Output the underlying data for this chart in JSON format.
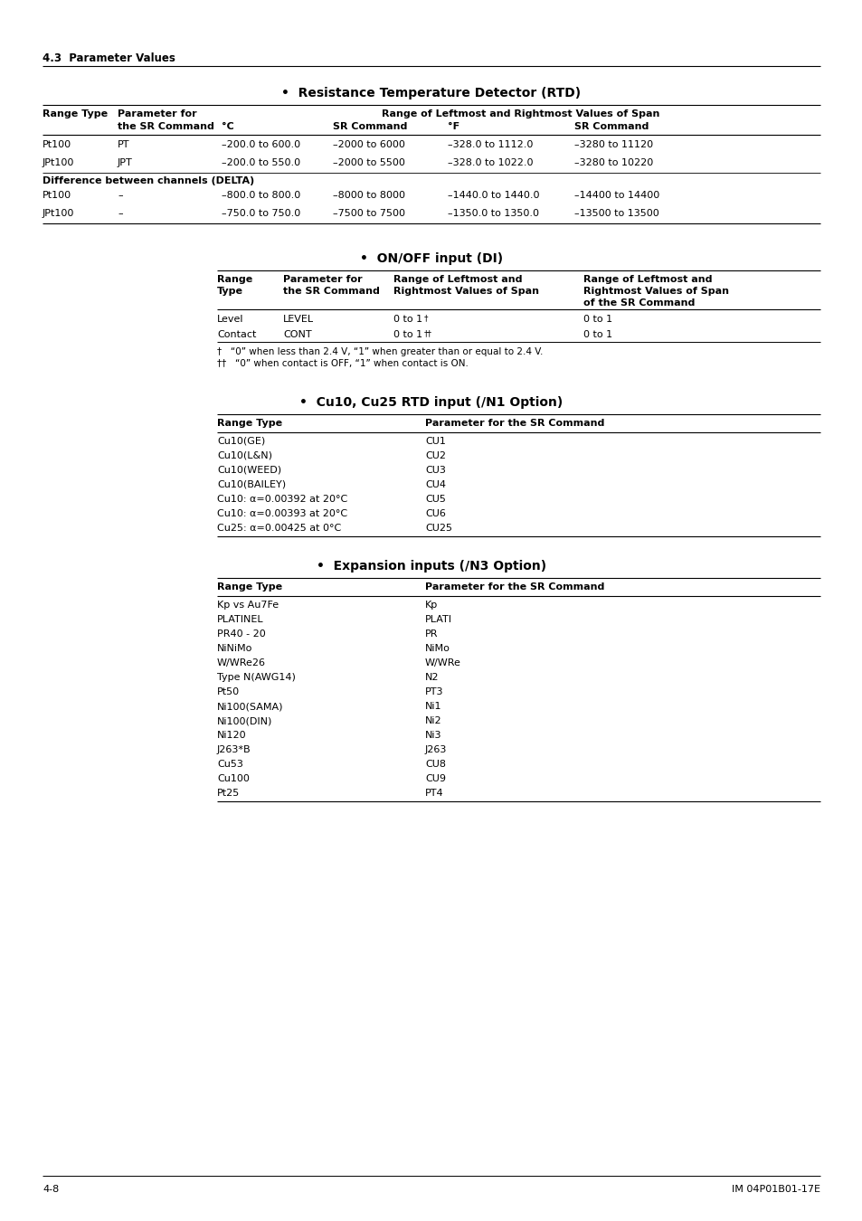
{
  "page_header": "4.3  Parameter Values",
  "footer_left": "4-8",
  "footer_right": "IM 04P01B01-17E",
  "section1_title": "•  Resistance Temperature Detector (RTD)",
  "rtd_table": {
    "rows": [
      [
        "Pt100",
        "PT",
        "–200.0 to 600.0",
        "–2000 to 6000",
        "–328.0 to 1112.0",
        "–3280 to 11120"
      ],
      [
        "JPt100",
        "JPT",
        "–200.0 to 550.0",
        "–2000 to 5500",
        "–328.0 to 1022.0",
        "–3280 to 10220"
      ]
    ],
    "delta_header": "Difference between channels (DELTA)",
    "delta_rows": [
      [
        "Pt100",
        "–",
        "–800.0 to 800.0",
        "–8000 to 8000",
        "–1440.0 to 1440.0",
        "–14400 to 14400"
      ],
      [
        "JPt100",
        "–",
        "–750.0 to 750.0",
        "–7500 to 7500",
        "–1350.0 to 1350.0",
        "–13500 to 13500"
      ]
    ]
  },
  "section2_title": "•  ON/OFF input (DI)",
  "di_table": {
    "rows": [
      [
        "Level",
        "LEVEL",
        "0 to 1†",
        "0 to 1"
      ],
      [
        "Contact",
        "CONT",
        "0 to 1††",
        "0 to 1"
      ]
    ],
    "footnote1": "†   “0” when less than 2.4 V, “1” when greater than or equal to 2.4 V.",
    "footnote2": "††   “0” when contact is OFF, “1” when contact is ON."
  },
  "section3_title": "•  Cu10, Cu25 RTD input (/N1 Option)",
  "cu_table": {
    "rows": [
      [
        "Cu10(GE)",
        "CU1"
      ],
      [
        "Cu10(L&N)",
        "CU2"
      ],
      [
        "Cu10(WEED)",
        "CU3"
      ],
      [
        "Cu10(BAILEY)",
        "CU4"
      ],
      [
        "Cu10: α=0.00392 at 20°C",
        "CU5"
      ],
      [
        "Cu10: α=0.00393 at 20°C",
        "CU6"
      ],
      [
        "Cu25: α=0.00425 at 0°C",
        "CU25"
      ]
    ]
  },
  "section4_title": "•  Expansion inputs (/N3 Option)",
  "exp_table": {
    "rows": [
      [
        "Kp vs Au7Fe",
        "Kp"
      ],
      [
        "PLATINEL",
        "PLATI"
      ],
      [
        "PR40 - 20",
        "PR"
      ],
      [
        "NiNiMo",
        "NiMo"
      ],
      [
        "W/WRe26",
        "W/WRe"
      ],
      [
        "Type N(AWG14)",
        "N2"
      ],
      [
        "Pt50",
        "PT3"
      ],
      [
        "Ni100(SAMA)",
        "Ni1"
      ],
      [
        "Ni100(DIN)",
        "Ni2"
      ],
      [
        "Ni120",
        "Ni3"
      ],
      [
        "J263*B",
        "J263"
      ],
      [
        "Cu53",
        "CU8"
      ],
      [
        "Cu100",
        "CU9"
      ],
      [
        "Pt25",
        "PT4"
      ]
    ]
  }
}
